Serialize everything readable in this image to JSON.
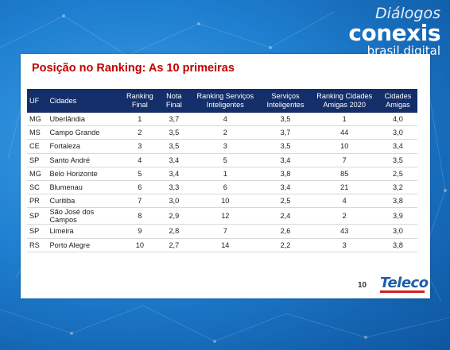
{
  "brand": {
    "line1": "Diálogos",
    "line2": "conexis",
    "line3": "brasil.digital"
  },
  "slide": {
    "title": "Posição no Ranking: As 10 primeiras",
    "page_number": "10",
    "logo": "Teleco"
  },
  "table": {
    "headers": [
      "UF",
      "Cidades",
      "Ranking Final",
      "Nota Final",
      "Ranking Serviços Inteligentes",
      "Serviços Inteligentes",
      "Ranking Cidades Amigas 2020",
      "Cidades Amigas"
    ],
    "rows": [
      [
        "MG",
        "Uberlândia",
        "1",
        "3,7",
        "4",
        "3,5",
        "1",
        "4,0"
      ],
      [
        "MS",
        "Campo Grande",
        "2",
        "3,5",
        "2",
        "3,7",
        "44",
        "3,0"
      ],
      [
        "CE",
        "Fortaleza",
        "3",
        "3,5",
        "3",
        "3,5",
        "10",
        "3,4"
      ],
      [
        "SP",
        "Santo André",
        "4",
        "3,4",
        "5",
        "3,4",
        "7",
        "3,5"
      ],
      [
        "MG",
        "Belo Horizonte",
        "5",
        "3,4",
        "1",
        "3,8",
        "85",
        "2,5"
      ],
      [
        "SC",
        "Blumenau",
        "6",
        "3,3",
        "6",
        "3,4",
        "21",
        "3,2"
      ],
      [
        "PR",
        "Curitiba",
        "7",
        "3,0",
        "10",
        "2,5",
        "4",
        "3,8"
      ],
      [
        "SP",
        "São José dos Campos",
        "8",
        "2,9",
        "12",
        "2,4",
        "2",
        "3,9"
      ],
      [
        "SP",
        "Limeira",
        "9",
        "2,8",
        "7",
        "2,6",
        "43",
        "3,0"
      ],
      [
        "RS",
        "Porto Alegre",
        "10",
        "2,7",
        "14",
        "2,2",
        "3",
        "3,8"
      ]
    ]
  }
}
